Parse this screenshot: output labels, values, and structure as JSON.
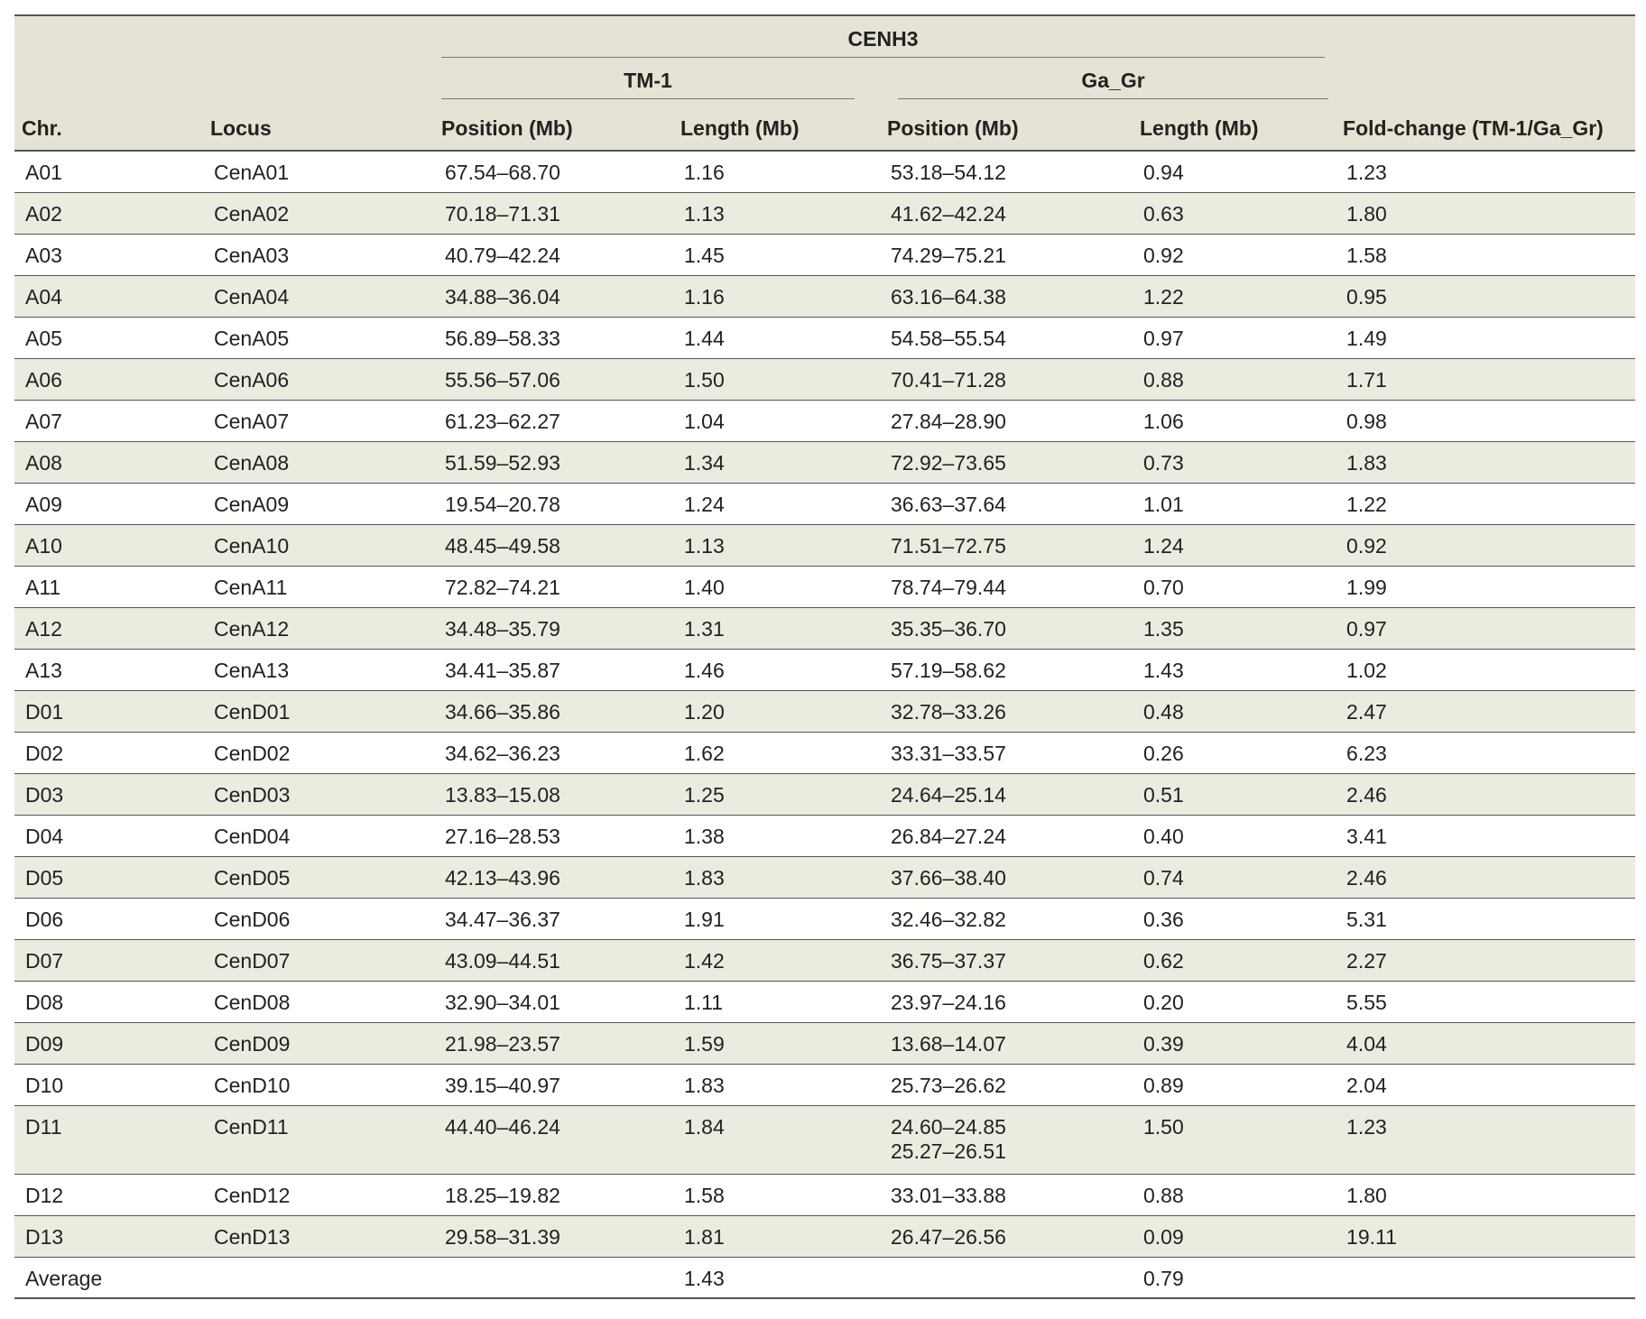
{
  "header": {
    "group_label": "CENH3",
    "tm1_label": "TM-1",
    "gagr_label": "Ga_Gr",
    "columns": {
      "chr": "Chr.",
      "locus": "Locus",
      "tm1_position": "Position (Mb)",
      "tm1_length": "Length (Mb)",
      "gagr_position": "Position (Mb)",
      "gagr_length": "Length (Mb)",
      "fold_change": "Fold-change (TM-1/Ga_Gr)"
    }
  },
  "rows": [
    {
      "chr": "A01",
      "locus": "CenA01",
      "tm1_pos": "67.54–68.70",
      "tm1_len": "1.16",
      "gagr_pos": "53.18–54.12",
      "gagr_len": "0.94",
      "fold": "1.23"
    },
    {
      "chr": "A02",
      "locus": "CenA02",
      "tm1_pos": "70.18–71.31",
      "tm1_len": "1.13",
      "gagr_pos": "41.62–42.24",
      "gagr_len": "0.63",
      "fold": "1.80"
    },
    {
      "chr": "A03",
      "locus": "CenA03",
      "tm1_pos": "40.79–42.24",
      "tm1_len": "1.45",
      "gagr_pos": "74.29–75.21",
      "gagr_len": "0.92",
      "fold": "1.58"
    },
    {
      "chr": "A04",
      "locus": "CenA04",
      "tm1_pos": "34.88–36.04",
      "tm1_len": "1.16",
      "gagr_pos": "63.16–64.38",
      "gagr_len": "1.22",
      "fold": "0.95"
    },
    {
      "chr": "A05",
      "locus": "CenA05",
      "tm1_pos": "56.89–58.33",
      "tm1_len": "1.44",
      "gagr_pos": "54.58–55.54",
      "gagr_len": "0.97",
      "fold": "1.49"
    },
    {
      "chr": "A06",
      "locus": "CenA06",
      "tm1_pos": "55.56–57.06",
      "tm1_len": "1.50",
      "gagr_pos": "70.41–71.28",
      "gagr_len": "0.88",
      "fold": "1.71"
    },
    {
      "chr": "A07",
      "locus": "CenA07",
      "tm1_pos": "61.23–62.27",
      "tm1_len": "1.04",
      "gagr_pos": "27.84–28.90",
      "gagr_len": "1.06",
      "fold": "0.98"
    },
    {
      "chr": "A08",
      "locus": "CenA08",
      "tm1_pos": "51.59–52.93",
      "tm1_len": "1.34",
      "gagr_pos": "72.92–73.65",
      "gagr_len": "0.73",
      "fold": "1.83"
    },
    {
      "chr": "A09",
      "locus": "CenA09",
      "tm1_pos": "19.54–20.78",
      "tm1_len": "1.24",
      "gagr_pos": "36.63–37.64",
      "gagr_len": "1.01",
      "fold": "1.22"
    },
    {
      "chr": "A10",
      "locus": "CenA10",
      "tm1_pos": "48.45–49.58",
      "tm1_len": "1.13",
      "gagr_pos": "71.51–72.75",
      "gagr_len": "1.24",
      "fold": "0.92"
    },
    {
      "chr": "A11",
      "locus": "CenA11",
      "tm1_pos": "72.82–74.21",
      "tm1_len": "1.40",
      "gagr_pos": "78.74–79.44",
      "gagr_len": "0.70",
      "fold": "1.99"
    },
    {
      "chr": "A12",
      "locus": "CenA12",
      "tm1_pos": "34.48–35.79",
      "tm1_len": "1.31",
      "gagr_pos": "35.35–36.70",
      "gagr_len": "1.35",
      "fold": "0.97"
    },
    {
      "chr": "A13",
      "locus": "CenA13",
      "tm1_pos": "34.41–35.87",
      "tm1_len": "1.46",
      "gagr_pos": "57.19–58.62",
      "gagr_len": "1.43",
      "fold": "1.02"
    },
    {
      "chr": "D01",
      "locus": "CenD01",
      "tm1_pos": "34.66–35.86",
      "tm1_len": "1.20",
      "gagr_pos": "32.78–33.26",
      "gagr_len": "0.48",
      "fold": "2.47"
    },
    {
      "chr": "D02",
      "locus": "CenD02",
      "tm1_pos": "34.62–36.23",
      "tm1_len": "1.62",
      "gagr_pos": "33.31–33.57",
      "gagr_len": "0.26",
      "fold": "6.23"
    },
    {
      "chr": "D03",
      "locus": "CenD03",
      "tm1_pos": "13.83–15.08",
      "tm1_len": "1.25",
      "gagr_pos": "24.64–25.14",
      "gagr_len": "0.51",
      "fold": "2.46"
    },
    {
      "chr": "D04",
      "locus": "CenD04",
      "tm1_pos": "27.16–28.53",
      "tm1_len": "1.38",
      "gagr_pos": "26.84–27.24",
      "gagr_len": "0.40",
      "fold": "3.41"
    },
    {
      "chr": "D05",
      "locus": "CenD05",
      "tm1_pos": "42.13–43.96",
      "tm1_len": "1.83",
      "gagr_pos": "37.66–38.40",
      "gagr_len": "0.74",
      "fold": "2.46"
    },
    {
      "chr": "D06",
      "locus": "CenD06",
      "tm1_pos": "34.47–36.37",
      "tm1_len": "1.91",
      "gagr_pos": "32.46–32.82",
      "gagr_len": "0.36",
      "fold": "5.31"
    },
    {
      "chr": "D07",
      "locus": "CenD07",
      "tm1_pos": "43.09–44.51",
      "tm1_len": "1.42",
      "gagr_pos": "36.75–37.37",
      "gagr_len": "0.62",
      "fold": "2.27"
    },
    {
      "chr": "D08",
      "locus": "CenD08",
      "tm1_pos": "32.90–34.01",
      "tm1_len": "1.11",
      "gagr_pos": "23.97–24.16",
      "gagr_len": "0.20",
      "fold": "5.55"
    },
    {
      "chr": "D09",
      "locus": "CenD09",
      "tm1_pos": "21.98–23.57",
      "tm1_len": "1.59",
      "gagr_pos": "13.68–14.07",
      "gagr_len": "0.39",
      "fold": "4.04"
    },
    {
      "chr": "D10",
      "locus": "CenD10",
      "tm1_pos": "39.15–40.97",
      "tm1_len": "1.83",
      "gagr_pos": "25.73–26.62",
      "gagr_len": "0.89",
      "fold": "2.04"
    },
    {
      "chr": "D11",
      "locus": "CenD11",
      "tm1_pos": "44.40–46.24",
      "tm1_len": "1.84",
      "gagr_pos": "24.60–24.85",
      "gagr_pos_2": "25.27–26.51",
      "gagr_len": "1.50",
      "fold": "1.23"
    },
    {
      "chr": "D12",
      "locus": "CenD12",
      "tm1_pos": "18.25–19.82",
      "tm1_len": "1.58",
      "gagr_pos": "33.01–33.88",
      "gagr_len": "0.88",
      "fold": "1.80"
    },
    {
      "chr": "D13",
      "locus": "CenD13",
      "tm1_pos": "29.58–31.39",
      "tm1_len": "1.81",
      "gagr_pos": "26.47–26.56",
      "gagr_len": "0.09",
      "fold": "19.11"
    },
    {
      "chr": "Average",
      "locus": "",
      "tm1_pos": "",
      "tm1_len": "1.43",
      "gagr_pos": "",
      "gagr_len": "0.79",
      "fold": ""
    }
  ],
  "colors": {
    "header_bg": "#e6e3d6",
    "row_shade": "#ecebe0",
    "rule": "#555555"
  }
}
